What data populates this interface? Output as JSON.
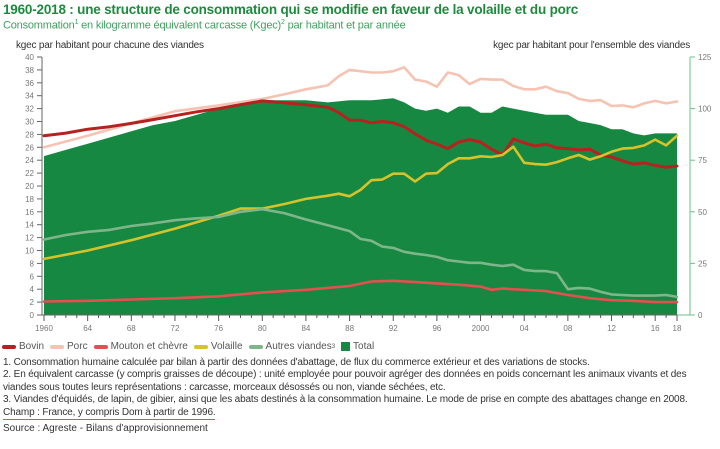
{
  "header": {
    "title": "1960-2018 : une structure de consommation qui se modifie en faveur de la volaille et du porc",
    "subtitle_pre": "Consommation",
    "subtitle_sup1": "1",
    "subtitle_mid": " en kilogramme équivalent carcasse (Kgec)",
    "subtitle_sup2": "2",
    "subtitle_post": " par habitant et par année"
  },
  "axes": {
    "left_title": "kgec par habitant pour chacune des viandes",
    "right_title": "kgec par habitant pour l'ensemble des viandes"
  },
  "legend": [
    {
      "label": "Bovin",
      "sup": "",
      "color": "#b5221f",
      "kind": "line"
    },
    {
      "label": "Porc",
      "sup": "",
      "color": "#f6c3b3",
      "kind": "line"
    },
    {
      "label": "Mouton et chèvre",
      "sup": "",
      "color": "#e2504f",
      "kind": "line"
    },
    {
      "label": "Volaille",
      "sup": "",
      "color": "#d6c22a",
      "kind": "line"
    },
    {
      "label": "Autres viandes",
      "sup": "3",
      "color": "#7fb58a",
      "kind": "line"
    },
    {
      "label": "Total",
      "sup": "",
      "color": "#178841",
      "kind": "box"
    }
  ],
  "notes": {
    "n1": "1. Consommation humaine calculée par bilan à partir des données d'abattage, de flux du commerce extérieur et des variations de stocks.",
    "n2": "2. En équivalent carcasse (y compris graisses de découpe) : unité employée pour pouvoir agréger des données en poids concernant les animaux vivants et des viandes sous toutes leurs représentations : carcasse, morceaux désossés ou non, viande séchées, etc.",
    "n3": "3. Viandes d'équidés, de lapin, de gibier, ainsi que les abats destinés à la consommation humaine. Le mode de prise en compte des abattages change en 2008.",
    "champ": "Champ : France, y compris Dom à partir de 1996.",
    "source": "Source : Agreste - Bilans d'approvisionnement"
  },
  "chart_data": {
    "type": "line",
    "title": "1960-2018 : une structure de consommation qui se modifie en faveur de la volaille et du porc",
    "xlabel": "",
    "ylabel": "kgec par habitant pour chacune des viandes",
    "y2label": "kgec par habitant pour l'ensemble des viandes",
    "xlim": [
      1960,
      2018
    ],
    "ylim": [
      0,
      40
    ],
    "y2lim": [
      0,
      125
    ],
    "yticks": [
      "0",
      "2",
      "4",
      "6",
      "8",
      "10",
      "12",
      "14",
      "16",
      "18",
      "20",
      "22",
      "24",
      "26",
      "28",
      "30",
      "32",
      "34",
      "36",
      "38",
      "40"
    ],
    "y2ticks": [
      "0",
      "25",
      "50",
      "75",
      "100",
      "125"
    ],
    "xtick_labels": [
      {
        "year": 1960,
        "label": "1960"
      },
      {
        "year": 1964,
        "label": "64"
      },
      {
        "year": 1968,
        "label": "68"
      },
      {
        "year": 1972,
        "label": "72"
      },
      {
        "year": 1976,
        "label": "76"
      },
      {
        "year": 1980,
        "label": "80"
      },
      {
        "year": 1984,
        "label": "84"
      },
      {
        "year": 1988,
        "label": "88"
      },
      {
        "year": 1992,
        "label": "92"
      },
      {
        "year": 1996,
        "label": "96"
      },
      {
        "year": 2000,
        "label": "2000"
      },
      {
        "year": 2004,
        "label": "04"
      },
      {
        "year": 2008,
        "label": "08"
      },
      {
        "year": 2012,
        "label": "12"
      },
      {
        "year": 2016,
        "label": "16"
      },
      {
        "year": 2018,
        "label": "18"
      }
    ],
    "grid": false,
    "legend_position": "bottom-left",
    "area_series": {
      "name": "Total",
      "axis": "right",
      "color": "#178841",
      "x": [
        1960,
        1962,
        1964,
        1966,
        1968,
        1970,
        1972,
        1974,
        1976,
        1978,
        1980,
        1982,
        1984,
        1986,
        1988,
        1990,
        1992,
        1993,
        1994,
        1995,
        1996,
        1997,
        1998,
        1999,
        2000,
        2001,
        2002,
        2003,
        2004,
        2005,
        2006,
        2007,
        2008,
        2009,
        2010,
        2011,
        2012,
        2013,
        2014,
        2015,
        2016,
        2017,
        2018
      ],
      "values": [
        77,
        80,
        83,
        86,
        89,
        92,
        94,
        97,
        100,
        103,
        104,
        104,
        104,
        103,
        104,
        104,
        105,
        103,
        100,
        99,
        100,
        98,
        101,
        101,
        98,
        98,
        101,
        100,
        99,
        98,
        97,
        97,
        97,
        94,
        93,
        92,
        90,
        90,
        88,
        87,
        88,
        88,
        88
      ]
    },
    "series": [
      {
        "name": "Porc",
        "axis": "left",
        "color": "#f6c3b3",
        "x": [
          1960,
          1964,
          1968,
          1972,
          1976,
          1980,
          1982,
          1984,
          1986,
          1987,
          1988,
          1990,
          1991,
          1992,
          1993,
          1994,
          1995,
          1996,
          1997,
          1998,
          1999,
          2000,
          2001,
          2002,
          2003,
          2004,
          2005,
          2006,
          2007,
          2008,
          2009,
          2010,
          2011,
          2012,
          2013,
          2014,
          2015,
          2016,
          2017,
          2018
        ],
        "values": [
          26,
          27.8,
          29.7,
          31.6,
          32.5,
          33.5,
          34.2,
          35.0,
          35.6,
          37.0,
          38.0,
          37.6,
          37.6,
          37.8,
          38.4,
          36.5,
          36.2,
          35.4,
          37.6,
          37.2,
          35.8,
          36.6,
          36.5,
          36.5,
          35.5,
          35.0,
          35.0,
          35.4,
          34.7,
          34.4,
          33.5,
          33.2,
          33.3,
          32.4,
          32.5,
          32.2,
          32.8,
          33.2,
          32.8,
          33.1
        ]
      },
      {
        "name": "Bovin",
        "axis": "left",
        "color": "#b5221f",
        "x": [
          1960,
          1962,
          1964,
          1966,
          1968,
          1970,
          1972,
          1974,
          1976,
          1978,
          1980,
          1982,
          1984,
          1986,
          1987,
          1988,
          1989,
          1990,
          1991,
          1992,
          1993,
          1994,
          1995,
          1996,
          1997,
          1998,
          1999,
          2000,
          2001,
          2002,
          2003,
          2004,
          2005,
          2006,
          2007,
          2008,
          2009,
          2010,
          2011,
          2012,
          2013,
          2014,
          2015,
          2016,
          2017,
          2018
        ],
        "values": [
          27.8,
          28.2,
          28.8,
          29.2,
          29.7,
          30.3,
          30.9,
          31.5,
          32.0,
          32.6,
          33.2,
          32.9,
          32.6,
          32.2,
          31.4,
          30.2,
          30.2,
          29.8,
          30.0,
          29.8,
          29.2,
          28.1,
          27.1,
          26.5,
          25.8,
          26.8,
          27.2,
          26.8,
          25.7,
          24.8,
          27.3,
          26.7,
          26.2,
          26.5,
          25.9,
          25.8,
          25.6,
          25.7,
          24.8,
          24.5,
          23.9,
          23.4,
          23.6,
          23.2,
          22.9,
          23.1
        ]
      },
      {
        "name": "Volaille",
        "axis": "left",
        "color": "#d6c22a",
        "x": [
          1960,
          1964,
          1968,
          1972,
          1976,
          1978,
          1980,
          1982,
          1984,
          1986,
          1987,
          1988,
          1989,
          1990,
          1991,
          1992,
          1993,
          1994,
          1995,
          1996,
          1997,
          1998,
          1999,
          2000,
          2001,
          2002,
          2003,
          2004,
          2005,
          2006,
          2007,
          2008,
          2009,
          2010,
          2011,
          2012,
          2013,
          2014,
          2015,
          2016,
          2017,
          2018
        ],
        "values": [
          8.7,
          10.0,
          11.6,
          13.4,
          15.4,
          16.5,
          16.5,
          17.2,
          18.0,
          18.5,
          18.8,
          18.4,
          19.4,
          20.9,
          21.0,
          21.9,
          21.9,
          20.7,
          21.9,
          22.0,
          23.4,
          24.3,
          24.3,
          24.6,
          24.5,
          24.8,
          26.1,
          23.6,
          23.4,
          23.3,
          23.7,
          24.3,
          24.8,
          24.1,
          24.6,
          25.3,
          25.8,
          25.9,
          26.3,
          27.2,
          26.3,
          27.8
        ]
      },
      {
        "name": "Autres viandes",
        "axis": "left",
        "color": "#7fb58a",
        "x": [
          1960,
          1962,
          1964,
          1966,
          1968,
          1970,
          1972,
          1974,
          1976,
          1978,
          1980,
          1982,
          1984,
          1986,
          1988,
          1989,
          1990,
          1991,
          1992,
          1993,
          1994,
          1995,
          1996,
          1997,
          1998,
          1999,
          2000,
          2001,
          2002,
          2003,
          2004,
          2005,
          2006,
          2007,
          2008,
          2009,
          2010,
          2011,
          2012,
          2013,
          2014,
          2015,
          2016,
          2017,
          2018
        ],
        "values": [
          11.7,
          12.4,
          12.9,
          13.2,
          13.8,
          14.2,
          14.7,
          15.0,
          15.2,
          16.0,
          16.4,
          15.8,
          14.8,
          13.9,
          13.0,
          11.8,
          11.5,
          10.6,
          10.4,
          9.8,
          9.5,
          9.3,
          9.0,
          8.5,
          8.3,
          8.1,
          8.1,
          7.8,
          7.6,
          7.8,
          7.0,
          6.8,
          6.8,
          6.5,
          4.0,
          4.2,
          4.1,
          3.6,
          3.2,
          3.1,
          3.0,
          3.0,
          3.0,
          3.1,
          2.8
        ]
      },
      {
        "name": "Mouton et chèvre",
        "axis": "left",
        "color": "#e2504f",
        "x": [
          1960,
          1964,
          1968,
          1972,
          1976,
          1980,
          1984,
          1988,
          1990,
          1992,
          1994,
          1996,
          1998,
          2000,
          2001,
          2002,
          2004,
          2006,
          2008,
          2010,
          2012,
          2014,
          2016,
          2018
        ],
        "values": [
          2.1,
          2.2,
          2.4,
          2.6,
          2.9,
          3.5,
          3.9,
          4.5,
          5.2,
          5.3,
          5.1,
          4.9,
          4.7,
          4.4,
          3.9,
          4.1,
          3.9,
          3.7,
          3.1,
          2.6,
          2.3,
          2.2,
          2.0,
          2.0
        ]
      }
    ]
  }
}
